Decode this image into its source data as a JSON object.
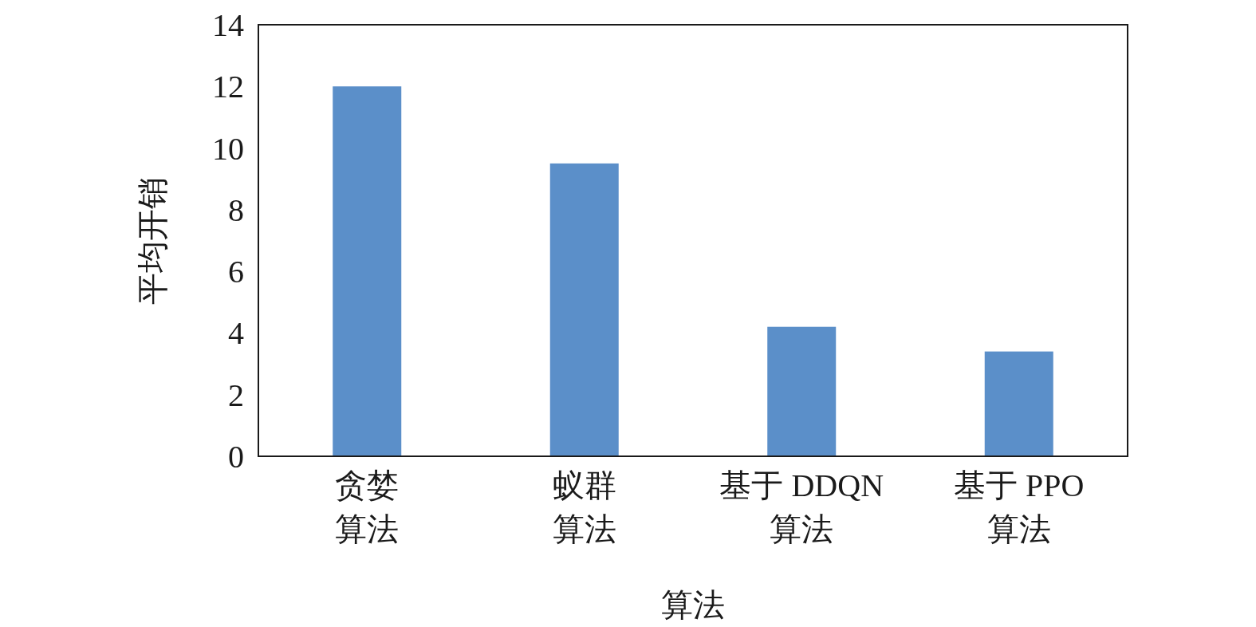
{
  "chart_data": {
    "type": "bar",
    "xlabel": "算法",
    "ylabel": "平均开销",
    "categories": [
      "贪婪算法",
      "蚁群算法",
      "基于 DDQN 算法",
      "基于 PPO 算法"
    ],
    "values": [
      12,
      9.5,
      4.2,
      3.4
    ],
    "color": "#5b8fc9",
    "ylim": [
      0,
      14
    ],
    "yticks": [
      0,
      2,
      4,
      6,
      8,
      10,
      12,
      14
    ],
    "grid": false
  }
}
